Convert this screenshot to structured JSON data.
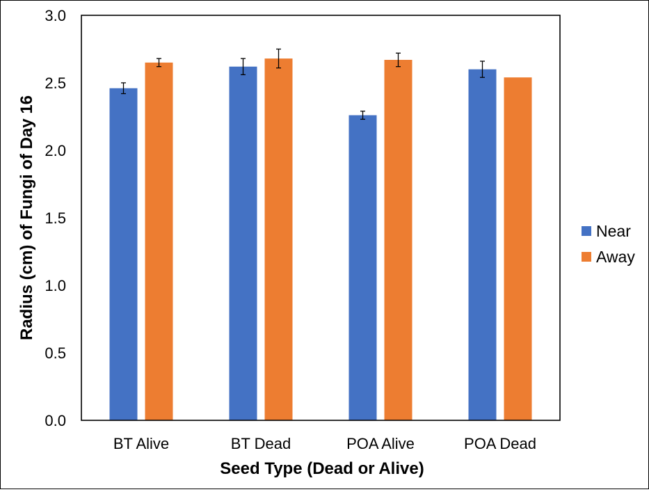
{
  "chart_data": {
    "type": "bar",
    "title": "",
    "xlabel": "Seed Type (Dead or Alive)",
    "ylabel": "Radius (cm) of Fungi of Day 16",
    "categories": [
      "BT Alive",
      "BT Dead",
      "POA Alive",
      "POA Dead"
    ],
    "ylim": [
      0,
      3.0
    ],
    "yticks": [
      "0.0",
      "0.5",
      "1.0",
      "1.5",
      "2.0",
      "2.5",
      "3.0"
    ],
    "grid": false,
    "legend_position": "right",
    "series": [
      {
        "name": "Near",
        "color": "#4472C4",
        "values": [
          2.46,
          2.62,
          2.26,
          2.6
        ],
        "errors": [
          0.04,
          0.06,
          0.03,
          0.06
        ]
      },
      {
        "name": "Away",
        "color": "#ED7D31",
        "values": [
          2.65,
          2.68,
          2.67,
          2.54
        ],
        "errors": [
          0.03,
          0.07,
          0.05,
          null
        ]
      }
    ]
  }
}
